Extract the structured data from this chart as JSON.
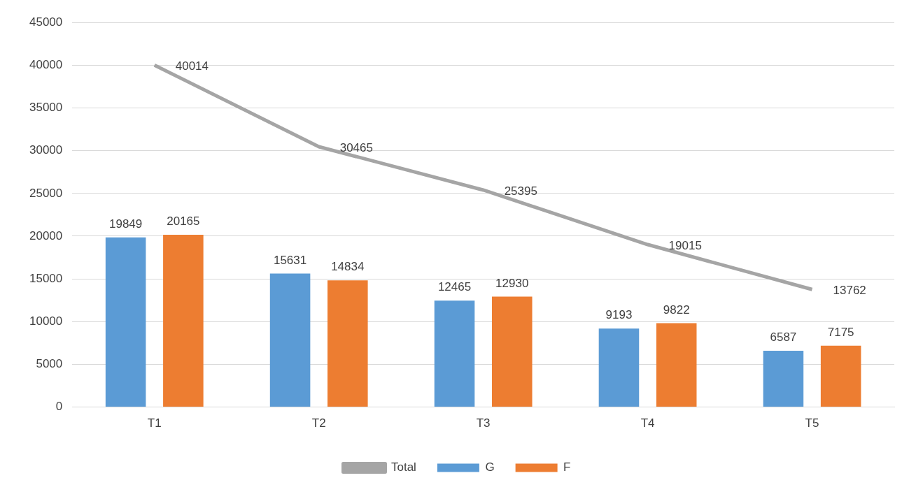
{
  "chart_data": {
    "type": "bar",
    "categories": [
      "T1",
      "T2",
      "T3",
      "T4",
      "T5"
    ],
    "series": [
      {
        "name": "G",
        "color": "#5b9bd5",
        "values": [
          19849,
          15631,
          12465,
          9193,
          6587
        ]
      },
      {
        "name": "F",
        "color": "#ed7d31",
        "values": [
          20165,
          14834,
          12930,
          9822,
          7175
        ]
      },
      {
        "name": "Total",
        "type": "line",
        "color": "#a5a5a5",
        "values": [
          40014,
          30465,
          25395,
          19015,
          13762
        ]
      }
    ],
    "ylim": [
      0,
      45000
    ],
    "yticks": [
      0,
      5000,
      10000,
      15000,
      20000,
      25000,
      30000,
      35000,
      40000,
      45000
    ],
    "grid": "y",
    "legend": "bottom",
    "data_labels": true,
    "marker": "none"
  }
}
